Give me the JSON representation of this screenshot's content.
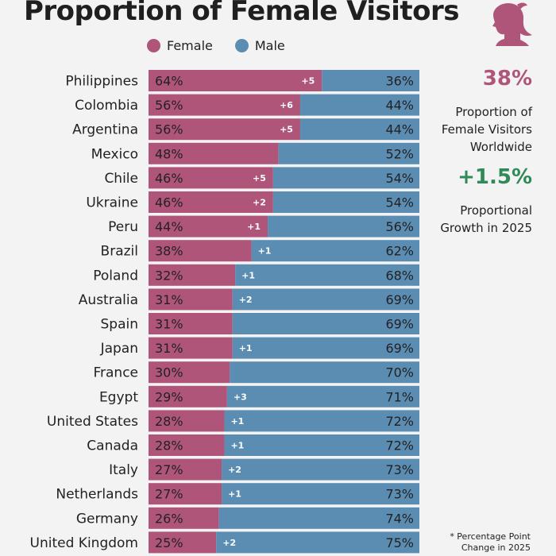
{
  "chart_data": {
    "type": "bar",
    "stacked": true,
    "orientation": "horizontal",
    "title": "Proportion of Female Visitors",
    "legend": [
      "Female",
      "Male"
    ],
    "categories": [
      "Philippines",
      "Colombia",
      "Argentina",
      "Mexico",
      "Chile",
      "Ukraine",
      "Peru",
      "Brazil",
      "Poland",
      "Australia",
      "Spain",
      "Japan",
      "France",
      "Egypt",
      "United States",
      "Canada",
      "Italy",
      "Netherlands",
      "Germany",
      "United Kingdom"
    ],
    "series": [
      {
        "name": "Female",
        "values": [
          64,
          56,
          56,
          48,
          46,
          46,
          44,
          38,
          32,
          31,
          31,
          31,
          30,
          29,
          28,
          28,
          27,
          27,
          26,
          25
        ]
      },
      {
        "name": "Male",
        "values": [
          36,
          44,
          44,
          52,
          54,
          54,
          56,
          62,
          68,
          69,
          69,
          69,
          70,
          71,
          72,
          72,
          73,
          73,
          74,
          75
        ]
      }
    ],
    "change_labels": [
      "+5",
      "+6",
      "+5",
      "",
      "+5",
      "+2",
      "+1",
      "+1",
      "+1",
      "+2",
      "",
      "+1",
      "",
      "+3",
      "+1",
      "+1",
      "+2",
      "+1",
      "",
      "+2"
    ],
    "xlim": [
      0,
      100
    ]
  },
  "colors": {
    "female": "#b0557a",
    "male": "#5b8db3",
    "growth": "#2e8a56"
  },
  "legend": {
    "female": "Female",
    "male": "Male"
  },
  "title": "Proportion of Female Visitors",
  "sidebar": {
    "stat_value": "38%",
    "stat_label": "Proportion of Female Visitors Worldwide",
    "growth_value": "+1.5%",
    "growth_label": "Proportional Growth in 2025"
  },
  "footnote": "* Percentage Point Change in 2025"
}
